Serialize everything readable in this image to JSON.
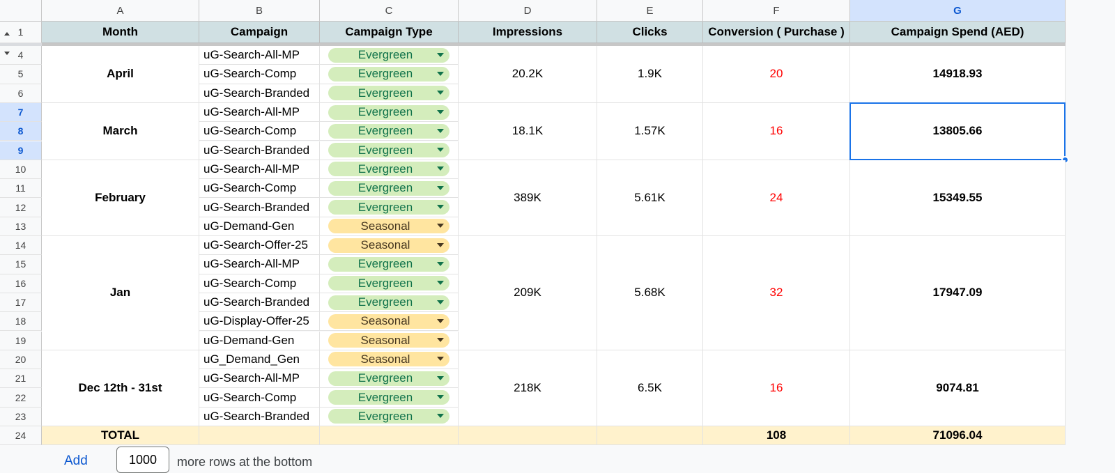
{
  "columns": [
    "A",
    "B",
    "C",
    "D",
    "E",
    "F",
    "G"
  ],
  "selected_column": "G",
  "header_row": {
    "row_number": "1",
    "cells": [
      "Month",
      "Campaign",
      "Campaign Type",
      "Impressions",
      "Clicks",
      "Conversion ( Purchase )",
      "Campaign Spend (AED)"
    ]
  },
  "row_numbers": [
    "4",
    "5",
    "6",
    "7",
    "8",
    "9",
    "10",
    "11",
    "12",
    "13",
    "14",
    "15",
    "16",
    "17",
    "18",
    "19",
    "20",
    "21",
    "22",
    "23"
  ],
  "selected_rows": [
    "7",
    "8",
    "9"
  ],
  "campaigns": [
    {
      "name": "uG-Search-All-MP",
      "type": "Evergreen"
    },
    {
      "name": "uG-Search-Comp",
      "type": "Evergreen"
    },
    {
      "name": "uG-Search-Branded",
      "type": "Evergreen"
    },
    {
      "name": "uG-Search-All-MP",
      "type": "Evergreen"
    },
    {
      "name": "uG-Search-Comp",
      "type": "Evergreen"
    },
    {
      "name": "uG-Search-Branded",
      "type": "Evergreen"
    },
    {
      "name": "uG-Search-All-MP",
      "type": "Evergreen"
    },
    {
      "name": "uG-Search-Comp",
      "type": "Evergreen"
    },
    {
      "name": "uG-Search-Branded",
      "type": "Evergreen"
    },
    {
      "name": "uG-Demand-Gen",
      "type": "Seasonal"
    },
    {
      "name": "uG-Search-Offer-25",
      "type": "Seasonal"
    },
    {
      "name": "uG-Search-All-MP",
      "type": "Evergreen"
    },
    {
      "name": "uG-Search-Comp",
      "type": "Evergreen"
    },
    {
      "name": "uG-Search-Branded",
      "type": "Evergreen"
    },
    {
      "name": "uG-Display-Offer-25",
      "type": "Seasonal"
    },
    {
      "name": "uG-Demand-Gen",
      "type": "Seasonal"
    },
    {
      "name": "uG_Demand_Gen",
      "type": "Seasonal"
    },
    {
      "name": "uG-Search-All-MP",
      "type": "Evergreen"
    },
    {
      "name": "uG-Search-Comp",
      "type": "Evergreen"
    },
    {
      "name": "uG-Search-Branded",
      "type": "Evergreen"
    }
  ],
  "months": [
    {
      "month": "April",
      "impressions": "20.2K",
      "clicks": "1.9K",
      "conversions": "20",
      "spend": "14918.93"
    },
    {
      "month": "March",
      "impressions": "18.1K",
      "clicks": "1.57K",
      "conversions": "16",
      "spend": "13805.66"
    },
    {
      "month": "February",
      "impressions": "389K",
      "clicks": "5.61K",
      "conversions": "24",
      "spend": "15349.55"
    },
    {
      "month": "Jan",
      "impressions": "209K",
      "clicks": "5.68K",
      "conversions": "32",
      "spend": "17947.09"
    },
    {
      "month": "Dec 12th - 31st",
      "impressions": "218K",
      "clicks": "6.5K",
      "conversions": "16",
      "spend": "9074.81"
    }
  ],
  "total_row": {
    "row_number": "24",
    "label": "TOTAL",
    "conversions": "108",
    "spend": "71096.04"
  },
  "footer": {
    "add_label": "Add",
    "rows_value": "1000",
    "suffix": "more rows at the bottom"
  },
  "colors": {
    "header_fill": "#d0e0e3",
    "total_fill": "#fff2cc",
    "evergreen_chip": "#d4edbc",
    "seasonal_chip": "#ffe5a0",
    "conversion_text": "#ff0000",
    "selection": "#1a73e8"
  }
}
